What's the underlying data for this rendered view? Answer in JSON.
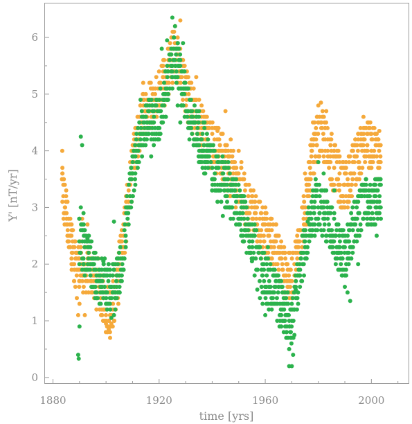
{
  "chart_data": {
    "type": "scatter",
    "title": "",
    "xlabel": "time  [yrs]",
    "ylabel": "Y'  [nT/yr]",
    "xlim": [
      1877,
      2014
    ],
    "ylim": [
      -0.1,
      6.6
    ],
    "xticks": [
      1880,
      1920,
      1960,
      2000
    ],
    "yticks": [
      0,
      1,
      2,
      3,
      4,
      5,
      6
    ],
    "grid": false,
    "legend": "none",
    "colors": {
      "series_a": "#f5a93a",
      "series_b": "#2bb24c"
    },
    "series_a_anchors": [
      [
        1883.5,
        3.3
      ],
      [
        1886,
        2.6
      ],
      [
        1888,
        2.1
      ],
      [
        1890,
        2.0
      ],
      [
        1893,
        1.9
      ],
      [
        1895,
        1.8
      ],
      [
        1897,
        1.65
      ],
      [
        1899,
        1.4
      ],
      [
        1901,
        1.1
      ],
      [
        1903,
        1.35
      ],
      [
        1905,
        1.9
      ],
      [
        1907,
        2.6
      ],
      [
        1909,
        3.4
      ],
      [
        1911,
        4.0
      ],
      [
        1913,
        4.5
      ],
      [
        1916,
        4.85
      ],
      [
        1918,
        4.9
      ],
      [
        1920,
        5.0
      ],
      [
        1922,
        5.25
      ],
      [
        1924,
        5.5
      ],
      [
        1926,
        5.8
      ],
      [
        1927,
        5.6
      ],
      [
        1929,
        5.25
      ],
      [
        1931,
        4.9
      ],
      [
        1933,
        4.65
      ],
      [
        1935,
        4.45
      ],
      [
        1938,
        4.2
      ],
      [
        1940,
        4.1
      ],
      [
        1943,
        3.95
      ],
      [
        1946,
        3.7
      ],
      [
        1948,
        3.55
      ],
      [
        1950,
        3.35
      ],
      [
        1953,
        3.05
      ],
      [
        1956,
        2.8
      ],
      [
        1958,
        2.6
      ],
      [
        1961,
        2.5
      ],
      [
        1963,
        2.4
      ],
      [
        1965,
        2.15
      ],
      [
        1967,
        1.9
      ],
      [
        1969,
        1.75
      ],
      [
        1971,
        1.9
      ],
      [
        1973,
        2.4
      ],
      [
        1975,
        3.0
      ],
      [
        1977,
        3.7
      ],
      [
        1979,
        4.2
      ],
      [
        1981,
        4.3
      ],
      [
        1983,
        4.1
      ],
      [
        1985,
        3.8
      ],
      [
        1987,
        3.6
      ],
      [
        1989,
        3.4
      ],
      [
        1991,
        3.4
      ],
      [
        1993,
        3.7
      ],
      [
        1995,
        3.9
      ],
      [
        1997,
        4.05
      ],
      [
        1999,
        4.1
      ],
      [
        2001,
        4.0
      ],
      [
        2003,
        3.9
      ]
    ],
    "series_b_anchors": [
      [
        1890,
        2.4
      ],
      [
        1893,
        2.15
      ],
      [
        1895,
        1.9
      ],
      [
        1897,
        1.75
      ],
      [
        1899,
        1.65
      ],
      [
        1901,
        1.6
      ],
      [
        1903,
        1.6
      ],
      [
        1905,
        1.85
      ],
      [
        1907,
        2.4
      ],
      [
        1909,
        3.2
      ],
      [
        1911,
        3.8
      ],
      [
        1913,
        4.3
      ],
      [
        1916,
        4.55
      ],
      [
        1918,
        4.5
      ],
      [
        1920,
        4.6
      ],
      [
        1922,
        4.85
      ],
      [
        1924,
        5.3
      ],
      [
        1926,
        5.7
      ],
      [
        1928,
        5.3
      ],
      [
        1930,
        4.9
      ],
      [
        1932,
        4.55
      ],
      [
        1934,
        4.35
      ],
      [
        1936,
        4.15
      ],
      [
        1938,
        3.95
      ],
      [
        1940,
        3.75
      ],
      [
        1943,
        3.55
      ],
      [
        1946,
        3.35
      ],
      [
        1948,
        3.15
      ],
      [
        1950,
        3.0
      ],
      [
        1952,
        2.8
      ],
      [
        1954,
        2.55
      ],
      [
        1956,
        2.3
      ],
      [
        1958,
        2.0
      ],
      [
        1960,
        1.75
      ],
      [
        1962,
        1.6
      ],
      [
        1964,
        1.5
      ],
      [
        1966,
        1.3
      ],
      [
        1968,
        1.1
      ],
      [
        1970,
        1.0
      ],
      [
        1972,
        1.55
      ],
      [
        1974,
        2.1
      ],
      [
        1976,
        2.55
      ],
      [
        1978,
        2.9
      ],
      [
        1980,
        3.05
      ],
      [
        1982,
        2.9
      ],
      [
        1984,
        2.65
      ],
      [
        1986,
        2.45
      ],
      [
        1988,
        2.25
      ],
      [
        1990,
        2.15
      ],
      [
        1992,
        2.45
      ],
      [
        1994,
        2.7
      ],
      [
        1996,
        3.0
      ],
      [
        1998,
        3.1
      ],
      [
        2000,
        3.05
      ],
      [
        2002,
        3.1
      ],
      [
        2003,
        3.2
      ]
    ],
    "series_a_points": [
      [
        1883.5,
        4.0
      ],
      [
        1884,
        3.5
      ],
      [
        1884.5,
        3.0
      ],
      [
        1885,
        2.7
      ],
      [
        1886,
        2.3
      ],
      [
        1887,
        2.0
      ],
      [
        1888,
        1.7
      ],
      [
        1889,
        1.4
      ],
      [
        1889.5,
        1.1
      ],
      [
        1890,
        1.3
      ],
      [
        1891,
        2.8
      ],
      [
        1892,
        1.1
      ],
      [
        1893,
        2.7
      ],
      [
        1895,
        2.1
      ],
      [
        1899,
        1.2
      ],
      [
        1900,
        0.95
      ],
      [
        1901,
        0.85
      ],
      [
        1901.5,
        0.8
      ],
      [
        1902,
        0.95
      ],
      [
        1905,
        2.4
      ],
      [
        1913,
        4.9
      ],
      [
        1914,
        5.2
      ],
      [
        1915,
        5.0
      ],
      [
        1924,
        5.8
      ],
      [
        1926,
        6.2
      ],
      [
        1927,
        6.0
      ],
      [
        1928,
        6.3
      ],
      [
        1929,
        5.5
      ],
      [
        1931,
        5.3
      ],
      [
        1934,
        5.3
      ],
      [
        1936,
        4.8
      ],
      [
        1938,
        4.6
      ],
      [
        1940,
        4.4
      ],
      [
        1942,
        4.35
      ],
      [
        1944,
        4.0
      ],
      [
        1945,
        4.7
      ],
      [
        1947,
        4.2
      ],
      [
        1950,
        4.0
      ],
      [
        1951,
        3.8
      ],
      [
        1952,
        3.5
      ],
      [
        1955,
        3.2
      ],
      [
        1958,
        3.1
      ],
      [
        1960,
        2.9
      ],
      [
        1962,
        2.8
      ],
      [
        1964,
        2.7
      ],
      [
        1966,
        2.4
      ],
      [
        1967,
        2.2
      ],
      [
        1968,
        2.0
      ],
      [
        1969,
        1.5
      ],
      [
        1970,
        1.2
      ],
      [
        1975,
        3.6
      ],
      [
        1977,
        4.1
      ],
      [
        1978,
        4.5
      ],
      [
        1980,
        4.8
      ],
      [
        1981,
        4.85
      ],
      [
        1982,
        4.6
      ],
      [
        1983,
        4.7
      ],
      [
        1985,
        4.3
      ],
      [
        1986,
        4.0
      ],
      [
        1988,
        3.8
      ],
      [
        1990,
        3.0
      ],
      [
        1992,
        2.7
      ],
      [
        1995,
        4.3
      ],
      [
        1997,
        4.6
      ],
      [
        1999,
        4.5
      ],
      [
        2000,
        4.3
      ],
      [
        2002,
        4.3
      ],
      [
        2003,
        4.35
      ],
      [
        2003,
        3.7
      ]
    ],
    "series_b_points": [
      [
        1889.5,
        0.4
      ],
      [
        1889.7,
        0.33
      ],
      [
        1890,
        0.9
      ],
      [
        1890.5,
        4.25
      ],
      [
        1891,
        4.1
      ],
      [
        1890.5,
        3.0
      ],
      [
        1891.5,
        2.9
      ],
      [
        1892,
        2.6
      ],
      [
        1893,
        2.45
      ],
      [
        1896,
        2.2
      ],
      [
        1899,
        2.05
      ],
      [
        1900,
        1.3
      ],
      [
        1902,
        1.05
      ],
      [
        1903,
        1.1
      ],
      [
        1903,
        2.75
      ],
      [
        1908,
        3.0
      ],
      [
        1910,
        3.6
      ],
      [
        1913,
        4.9
      ],
      [
        1917,
        3.9
      ],
      [
        1919,
        4.3
      ],
      [
        1921,
        5.8
      ],
      [
        1923,
        5.95
      ],
      [
        1925,
        6.35
      ],
      [
        1926,
        6.2
      ],
      [
        1925,
        5.1
      ],
      [
        1927,
        4.8
      ],
      [
        1928,
        4.5
      ],
      [
        1929,
        5.9
      ],
      [
        1931,
        4.4
      ],
      [
        1933,
        4.1
      ],
      [
        1935,
        4.7
      ],
      [
        1937,
        3.6
      ],
      [
        1938,
        4.0
      ],
      [
        1940,
        3.3
      ],
      [
        1941,
        3.4
      ],
      [
        1942,
        3.1
      ],
      [
        1944,
        2.85
      ],
      [
        1945,
        3.2
      ],
      [
        1947,
        3.0
      ],
      [
        1949,
        2.9
      ],
      [
        1951,
        2.6
      ],
      [
        1952,
        2.4
      ],
      [
        1953,
        2.2
      ],
      [
        1955,
        2.05
      ],
      [
        1956,
        1.8
      ],
      [
        1957,
        1.55
      ],
      [
        1958,
        1.4
      ],
      [
        1959,
        1.3
      ],
      [
        1960,
        1.1
      ],
      [
        1961,
        2.3
      ],
      [
        1963,
        1.9
      ],
      [
        1965,
        1.6
      ],
      [
        1966,
        1.1
      ],
      [
        1967,
        1.0
      ],
      [
        1968,
        0.8
      ],
      [
        1969,
        0.5
      ],
      [
        1969,
        0.2
      ],
      [
        1970,
        0.2
      ],
      [
        1970.5,
        0.4
      ],
      [
        1971,
        0.75
      ],
      [
        1971.5,
        1.55
      ],
      [
        1973,
        2.0
      ],
      [
        1975,
        2.4
      ],
      [
        1976,
        2.75
      ],
      [
        1978,
        3.3
      ],
      [
        1979,
        3.5
      ],
      [
        1980,
        3.8
      ],
      [
        1982,
        3.6
      ],
      [
        1983,
        3.3
      ],
      [
        1985,
        3.0
      ],
      [
        1986,
        3.3
      ],
      [
        1987,
        2.7
      ],
      [
        1988,
        2.2
      ],
      [
        1989,
        1.9
      ],
      [
        1990,
        1.6
      ],
      [
        1991,
        1.5
      ],
      [
        1992,
        1.35
      ],
      [
        1993,
        2.8
      ],
      [
        1995,
        2.0
      ],
      [
        1996,
        3.2
      ],
      [
        1998,
        3.5
      ],
      [
        2000,
        3.3
      ],
      [
        2001,
        3.1
      ],
      [
        2002,
        3.5
      ],
      [
        2003,
        3.0
      ],
      [
        2003,
        2.9
      ],
      [
        2002,
        2.5
      ]
    ]
  }
}
